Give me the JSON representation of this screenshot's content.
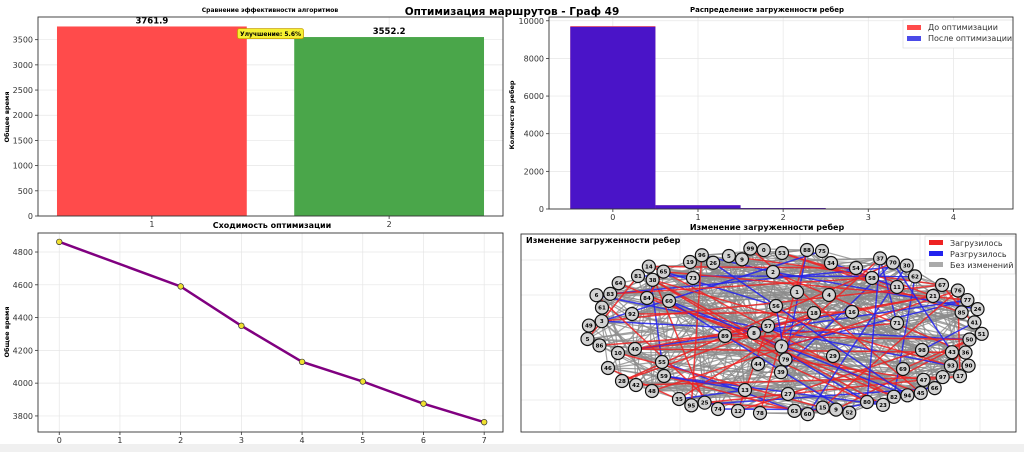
{
  "figure_title": "Оптимизация маршрутов - Граф 49",
  "chart_data": [
    {
      "type": "bar",
      "title": "Сравнение эффективности алгоритмов",
      "categories": [
        "1",
        "2"
      ],
      "values": [
        3761.9,
        3552.2
      ],
      "value_labels": [
        "3761.9",
        "3552.2"
      ],
      "colors": [
        "#ff4b4b",
        "#4aa64a"
      ],
      "annotation": "Улучшение: 5.6%",
      "xlabel": "",
      "ylabel": "Общее время",
      "ylim": [
        0,
        3950
      ],
      "yticks": [
        0,
        500,
        1000,
        1500,
        2000,
        2500,
        3000,
        3500
      ],
      "grid": true
    },
    {
      "type": "bar",
      "title": "Распределение загруженности ребер",
      "xlabel": "Изменение загруженности ребер",
      "ylabel": "Количество ребер",
      "bins": [
        [
          -0.5,
          0.5
        ],
        [
          0.5,
          1.5
        ],
        [
          1.5,
          2.5
        ]
      ],
      "series": [
        {
          "name": "До оптимизации",
          "values": [
            9720,
            200,
            50
          ],
          "color": "#ff4b4b"
        },
        {
          "name": "После оптимизации",
          "values": [
            9680,
            200,
            50
          ],
          "color": "#4a4ae8"
        }
      ],
      "overlap_color": "#4a14c8",
      "xticks": [
        0,
        1,
        2,
        3,
        4
      ],
      "yticks": [
        0,
        2000,
        4000,
        6000,
        8000,
        10000
      ],
      "xlim": [
        -0.75,
        4.7
      ],
      "ylim": [
        0,
        10200
      ],
      "legend": "top-right",
      "grid": true
    },
    {
      "type": "line",
      "title": "Сходимость оптимизации",
      "xlabel": "",
      "ylabel": "Общее время",
      "x": [
        0,
        2,
        3,
        4,
        5,
        6,
        7
      ],
      "y": [
        4862,
        4590,
        4350,
        4130,
        4010,
        3875,
        3762
      ],
      "color": "#800080",
      "marker_color": "#f0e030",
      "xticks": [
        0,
        1,
        2,
        3,
        4,
        5,
        6,
        7
      ],
      "yticks": [
        3800,
        4000,
        4200,
        4400,
        4600,
        4800
      ],
      "xlim": [
        -0.35,
        7.31
      ],
      "ylim": [
        3702,
        4916
      ],
      "grid": true
    },
    {
      "type": "network",
      "title": "Изменение загруженности ребер",
      "legend": [
        {
          "label": "Загрузилось",
          "color": "#ee2222"
        },
        {
          "label": "Разгрузилось",
          "color": "#2222ee"
        },
        {
          "label": "Без изменений",
          "color": "#aaaaaa"
        }
      ],
      "nodes": [
        "5",
        "99",
        "0",
        "53",
        "96",
        "26",
        "19",
        "73",
        "14",
        "65",
        "81",
        "38",
        "64",
        "83",
        "6",
        "61",
        "84",
        "60",
        "92",
        "3",
        "49",
        "5",
        "86",
        "89",
        "8",
        "57",
        "56",
        "2",
        "1",
        "40",
        "10",
        "46",
        "28",
        "42",
        "48",
        "55",
        "59",
        "44",
        "7",
        "79",
        "39",
        "13",
        "27",
        "35",
        "95",
        "25",
        "74",
        "12",
        "78",
        "63",
        "88",
        "75",
        "34",
        "54",
        "58",
        "37",
        "70",
        "30",
        "62",
        "11",
        "4",
        "18",
        "16",
        "71",
        "67",
        "21",
        "76",
        "77",
        "85",
        "24",
        "41",
        "51",
        "50",
        "36",
        "98",
        "43",
        "93",
        "90",
        "17",
        "29",
        "69",
        "47",
        "97",
        "66",
        "45",
        "94",
        "82",
        "23",
        "80",
        "52",
        "9",
        "15",
        "60",
        "9"
      ]
    }
  ]
}
